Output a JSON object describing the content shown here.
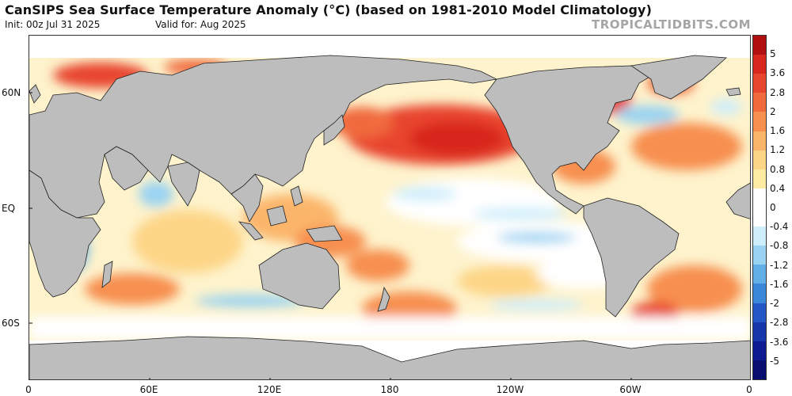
{
  "header": {
    "title": "CanSIPS Sea Surface Temperature Anomaly (°C) (based on 1981-2010 Model Climatology)",
    "init": "Init: 00z Jul 31 2025",
    "valid": "Valid for: Aug 2025",
    "brand": "TROPICALTIDBITS.COM"
  },
  "map": {
    "lat_labels": [
      "60N",
      "EQ",
      "60S"
    ],
    "lon_labels": [
      "0",
      "60E",
      "120E",
      "180",
      "120W",
      "60W",
      "0"
    ],
    "land_color": "#bdbdbd",
    "coast_color": "#222222"
  },
  "colorbar": {
    "labels": [
      "5",
      "3.6",
      "2.8",
      "2",
      "1.6",
      "1.2",
      "0.8",
      "0.4",
      "0",
      "-0.4",
      "-0.8",
      "-1.2",
      "-1.6",
      "-2",
      "-2.8",
      "-3.6",
      "-5"
    ],
    "colors": [
      "#b21010",
      "#d8281e",
      "#e8452e",
      "#f06a3e",
      "#f78f4f",
      "#fbb56a",
      "#fdd587",
      "#fdeaa3",
      "#ffffff",
      "#ffffff",
      "#cfeefb",
      "#9ad3f2",
      "#62aee6",
      "#3a86d8",
      "#2456c6",
      "#1636aa",
      "#0e1a90",
      "#070e6e"
    ]
  }
}
